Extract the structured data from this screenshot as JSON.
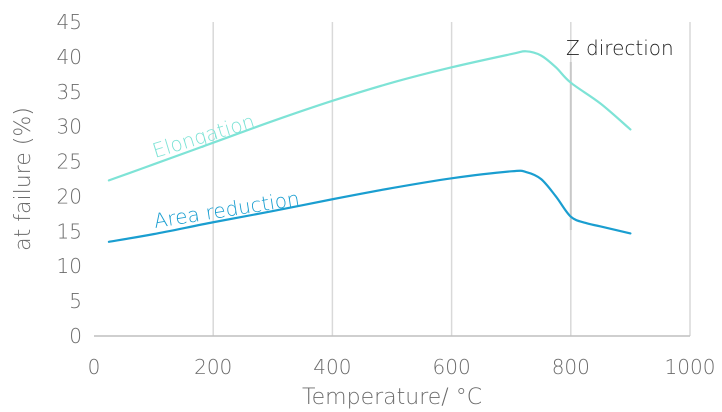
{
  "chart_data": {
    "type": "line",
    "xlabel": "Temperature/ °C",
    "ylabel": "at failure (%)",
    "xlim": [
      0,
      1000
    ],
    "ylim": [
      0,
      45
    ],
    "x_ticks": [
      0,
      200,
      400,
      600,
      800,
      1000
    ],
    "y_ticks": [
      0,
      5,
      10,
      15,
      20,
      25,
      30,
      35,
      40,
      45
    ],
    "grid": "vertical",
    "series": [
      {
        "name": "Elongation",
        "color": "#7ee3d6",
        "points": [
          [
            25,
            22.3
          ],
          [
            100,
            24.6
          ],
          [
            200,
            27.7
          ],
          [
            300,
            30.8
          ],
          [
            400,
            33.7
          ],
          [
            500,
            36.3
          ],
          [
            600,
            38.5
          ],
          [
            700,
            40.4
          ],
          [
            725,
            40.8
          ],
          [
            750,
            40.2
          ],
          [
            775,
            38.5
          ],
          [
            800,
            36.3
          ],
          [
            850,
            33.3
          ],
          [
            900,
            29.6
          ]
        ]
      },
      {
        "name": "Area reduction",
        "color": "#1a9ed0",
        "points": [
          [
            25,
            13.5
          ],
          [
            100,
            14.6
          ],
          [
            200,
            16.3
          ],
          [
            300,
            17.9
          ],
          [
            400,
            19.6
          ],
          [
            500,
            21.2
          ],
          [
            600,
            22.6
          ],
          [
            700,
            23.6
          ],
          [
            725,
            23.5
          ],
          [
            750,
            22.5
          ],
          [
            775,
            20.0
          ],
          [
            800,
            17.1
          ],
          [
            825,
            16.2
          ],
          [
            850,
            15.7
          ],
          [
            900,
            14.7
          ]
        ]
      }
    ],
    "annotation": {
      "text": "Z direction",
      "x": 800
    }
  }
}
